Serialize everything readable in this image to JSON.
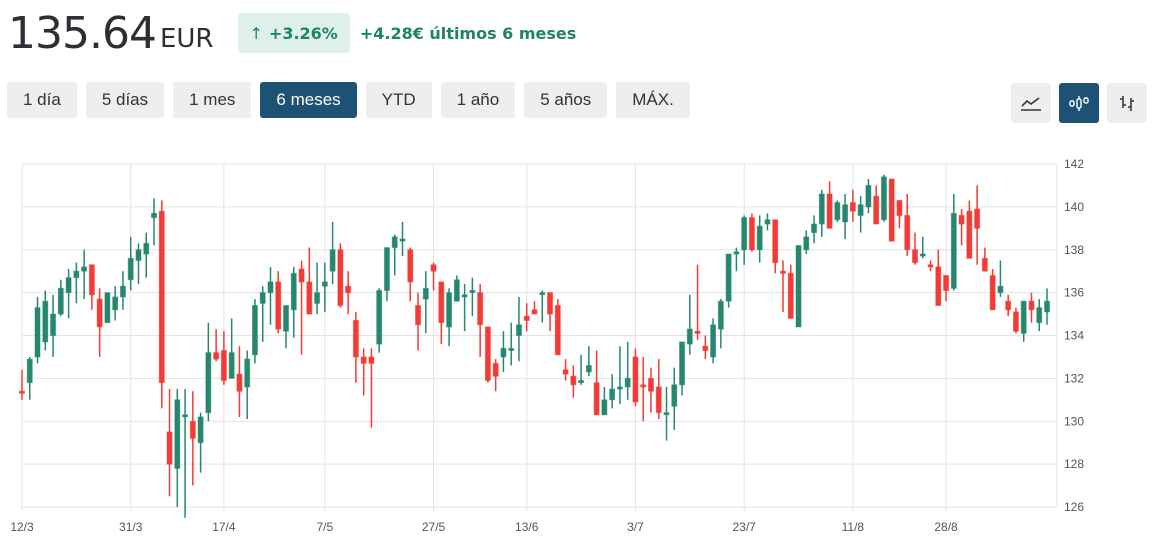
{
  "header": {
    "price": "135.64",
    "currency": "EUR",
    "change_pct": "+3.26%",
    "change_arrow": "↑",
    "change_text": "+4.28€ últimos 6 meses"
  },
  "ranges": [
    {
      "label": "1 día",
      "active": false
    },
    {
      "label": "5 días",
      "active": false
    },
    {
      "label": "1 mes",
      "active": false
    },
    {
      "label": "6 meses",
      "active": true
    },
    {
      "label": "YTD",
      "active": false
    },
    {
      "label": "1 año",
      "active": false
    },
    {
      "label": "5 años",
      "active": false
    },
    {
      "label": "MÁX.",
      "active": false
    }
  ],
  "chart_types": [
    {
      "name": "line-chart-icon",
      "active": false
    },
    {
      "name": "candlestick-chart-icon",
      "active": true
    },
    {
      "name": "ohlc-chart-icon",
      "active": false
    }
  ],
  "colors": {
    "up": "#26876e",
    "down": "#f23a36",
    "active_button": "#1d5275",
    "badge_bg": "#dff0ea",
    "positive_text": "#1f8463"
  },
  "chart_data": {
    "type": "candlestick",
    "title": "",
    "xlabel": "",
    "ylabel": "",
    "ylim": [
      126,
      142
    ],
    "yticks": [
      126,
      128,
      130,
      132,
      134,
      136,
      138,
      140,
      142
    ],
    "grid": true,
    "x_ticks": [
      {
        "label": "12/3",
        "index": 0
      },
      {
        "label": "31/3",
        "index": 14
      },
      {
        "label": "17/4",
        "index": 26
      },
      {
        "label": "7/5",
        "index": 39
      },
      {
        "label": "27/5",
        "index": 53
      },
      {
        "label": "13/6",
        "index": 65
      },
      {
        "label": "3/7",
        "index": 79
      },
      {
        "label": "23/7",
        "index": 93
      },
      {
        "label": "11/8",
        "index": 107
      },
      {
        "label": "28/8",
        "index": 119
      }
    ],
    "candles": [
      [
        131.4,
        132.4,
        131.0,
        131.3
      ],
      [
        131.8,
        133.0,
        131.0,
        132.9
      ],
      [
        133.0,
        135.8,
        132.7,
        135.3
      ],
      [
        133.7,
        136.1,
        133.3,
        135.6
      ],
      [
        134.0,
        135.9,
        133.0,
        135.0
      ],
      [
        135.0,
        136.6,
        134.9,
        136.2
      ],
      [
        136.0,
        137.1,
        134.8,
        136.7
      ],
      [
        136.7,
        137.4,
        135.5,
        137.0
      ],
      [
        137.0,
        138.0,
        135.7,
        137.2
      ],
      [
        137.3,
        137.0,
        135.2,
        135.9
      ],
      [
        135.7,
        136.2,
        133.0,
        134.4
      ],
      [
        134.6,
        136.0,
        134.6,
        136.0
      ],
      [
        135.2,
        136.3,
        134.7,
        135.8
      ],
      [
        135.8,
        137.0,
        135.2,
        136.3
      ],
      [
        136.6,
        138.6,
        136.1,
        137.6
      ],
      [
        137.5,
        138.3,
        136.4,
        138.0
      ],
      [
        137.8,
        138.8,
        136.7,
        138.3
      ],
      [
        139.5,
        140.4,
        138.2,
        139.7
      ],
      [
        139.8,
        140.3,
        130.6,
        131.8
      ],
      [
        129.5,
        131.5,
        126.5,
        128.0
      ],
      [
        127.8,
        131.5,
        126.0,
        131.0
      ],
      [
        130.3,
        131.5,
        125.5,
        130.3
      ],
      [
        130.0,
        131.4,
        127.0,
        129.2
      ],
      [
        129.0,
        130.4,
        127.6,
        130.2
      ],
      [
        130.4,
        134.6,
        130.0,
        133.2
      ],
      [
        133.2,
        134.3,
        132.8,
        132.9
      ],
      [
        133.3,
        134.2,
        131.7,
        131.9
      ],
      [
        132.0,
        134.8,
        132.0,
        133.2
      ],
      [
        132.2,
        133.5,
        130.2,
        131.4
      ],
      [
        131.6,
        133.3,
        130.1,
        132.9
      ],
      [
        133.1,
        135.7,
        132.7,
        135.4
      ],
      [
        135.5,
        136.3,
        133.7,
        136.0
      ],
      [
        136.0,
        137.2,
        134.5,
        136.5
      ],
      [
        136.5,
        137.0,
        134.1,
        134.3
      ],
      [
        134.2,
        135.4,
        133.4,
        135.4
      ],
      [
        135.2,
        137.2,
        133.9,
        136.9
      ],
      [
        137.1,
        137.5,
        133.1,
        136.5
      ],
      [
        136.5,
        138.1,
        135.0,
        135.0
      ],
      [
        135.5,
        137.4,
        135.0,
        136.0
      ],
      [
        136.3,
        137.4,
        135.1,
        136.5
      ],
      [
        137.0,
        139.3,
        136.4,
        138.0
      ],
      [
        138.0,
        138.3,
        135.3,
        135.4
      ],
      [
        136.3,
        137.0,
        135.0,
        136.0
      ],
      [
        134.7,
        135.1,
        131.8,
        133.0
      ],
      [
        133.0,
        133.4,
        131.2,
        132.7
      ],
      [
        133.0,
        133.4,
        129.7,
        132.7
      ],
      [
        133.6,
        136.2,
        133.2,
        136.1
      ],
      [
        136.1,
        138.0,
        135.6,
        138.1
      ],
      [
        138.1,
        138.7,
        136.8,
        138.6
      ],
      [
        138.5,
        139.3,
        137.7,
        138.5
      ],
      [
        138.0,
        138.1,
        135.6,
        136.5
      ],
      [
        135.4,
        136.0,
        133.3,
        134.5
      ],
      [
        135.7,
        137.0,
        134.1,
        136.2
      ],
      [
        137.3,
        137.4,
        136.1,
        137.0
      ],
      [
        136.5,
        136.5,
        133.6,
        134.6
      ],
      [
        134.4,
        136.2,
        133.5,
        136.0
      ],
      [
        135.6,
        136.8,
        135.6,
        136.6
      ],
      [
        135.8,
        136.4,
        134.2,
        135.9
      ],
      [
        136.1,
        136.7,
        134.9,
        136.1
      ],
      [
        136.0,
        136.4,
        133.0,
        134.5
      ],
      [
        134.4,
        134.4,
        131.8,
        131.9
      ],
      [
        132.7,
        132.9,
        131.4,
        132.1
      ],
      [
        133.0,
        134.2,
        132.3,
        133.4
      ],
      [
        133.3,
        134.6,
        132.6,
        133.4
      ],
      [
        134.0,
        135.8,
        132.8,
        134.5
      ],
      [
        134.9,
        135.5,
        134.2,
        134.7
      ],
      [
        135.2,
        135.6,
        135.0,
        135.0
      ],
      [
        136.0,
        136.1,
        134.6,
        136.0
      ],
      [
        136.0,
        136.0,
        134.2,
        135.0
      ],
      [
        135.4,
        135.7,
        133.1,
        133.1
      ],
      [
        132.4,
        132.9,
        131.9,
        132.2
      ],
      [
        132.1,
        132.6,
        131.1,
        131.7
      ],
      [
        131.8,
        133.1,
        131.7,
        131.9
      ],
      [
        132.3,
        133.5,
        132.1,
        132.6
      ],
      [
        131.8,
        133.3,
        130.3,
        130.3
      ],
      [
        130.3,
        131.6,
        130.8,
        131.0
      ],
      [
        131.0,
        132.2,
        130.6,
        131.5
      ],
      [
        131.5,
        133.5,
        130.8,
        131.6
      ],
      [
        131.6,
        133.7,
        131.0,
        132.0
      ],
      [
        133.0,
        133.4,
        130.7,
        130.9
      ],
      [
        131.7,
        133.0,
        130.0,
        131.6
      ],
      [
        132.0,
        132.5,
        130.4,
        131.4
      ],
      [
        131.6,
        132.9,
        130.1,
        130.4
      ],
      [
        130.4,
        131.6,
        129.1,
        130.4
      ],
      [
        130.7,
        132.5,
        129.6,
        131.7
      ],
      [
        131.7,
        133.6,
        131.2,
        133.7
      ],
      [
        133.6,
        135.9,
        133.1,
        134.3
      ],
      [
        134.2,
        137.3,
        133.8,
        134.1
      ],
      [
        133.5,
        134.0,
        132.9,
        133.3
      ],
      [
        133.0,
        134.8,
        132.7,
        134.5
      ],
      [
        134.3,
        135.7,
        133.4,
        135.6
      ],
      [
        135.6,
        137.5,
        135.3,
        137.8
      ],
      [
        137.8,
        138.1,
        137.0,
        137.9
      ],
      [
        138.0,
        139.6,
        137.3,
        139.5
      ],
      [
        139.5,
        139.7,
        137.9,
        138.0
      ],
      [
        138.0,
        139.6,
        137.4,
        139.1
      ],
      [
        139.2,
        139.7,
        138.9,
        139.4
      ],
      [
        139.4,
        139.4,
        136.9,
        137.4
      ],
      [
        137.0,
        137.5,
        135.1,
        136.9
      ],
      [
        136.9,
        137.3,
        136.6,
        134.8
      ],
      [
        134.4,
        138.0,
        134.6,
        138.2
      ],
      [
        138.0,
        138.9,
        137.8,
        138.6
      ],
      [
        138.8,
        139.6,
        138.3,
        139.2
      ],
      [
        139.2,
        140.8,
        138.6,
        140.6
      ],
      [
        140.6,
        141.2,
        139.0,
        139.0
      ],
      [
        139.4,
        140.3,
        139.3,
        140.2
      ],
      [
        139.3,
        140.6,
        138.5,
        140.1
      ],
      [
        140.2,
        140.8,
        139.3,
        139.8
      ],
      [
        139.6,
        140.5,
        138.8,
        140.1
      ],
      [
        140.0,
        141.3,
        139.7,
        141.0
      ],
      [
        140.5,
        141.0,
        139.2,
        139.2
      ],
      [
        139.4,
        141.5,
        139.3,
        141.4
      ],
      [
        141.3,
        140.8,
        138.7,
        138.4
      ],
      [
        140.3,
        140.0,
        139.0,
        139.6
      ],
      [
        139.6,
        140.6,
        137.7,
        138.0
      ],
      [
        138.0,
        138.8,
        137.3,
        137.4
      ],
      [
        137.8,
        138.6,
        137.6,
        137.8
      ],
      [
        137.3,
        137.5,
        137.0,
        137.2
      ],
      [
        137.2,
        138.0,
        135.4,
        135.4
      ],
      [
        136.8,
        136.8,
        135.6,
        136.1
      ],
      [
        136.2,
        140.6,
        136.1,
        139.7
      ],
      [
        139.6,
        139.9,
        138.2,
        139.2
      ],
      [
        139.8,
        140.3,
        137.6,
        137.6
      ],
      [
        139.9,
        141.0,
        137.3,
        139.0
      ],
      [
        137.6,
        138.1,
        137.1,
        137.0
      ],
      [
        136.8,
        137.1,
        135.5,
        135.2
      ],
      [
        136.0,
        137.5,
        135.8,
        136.3
      ],
      [
        135.6,
        135.9,
        134.9,
        135.2
      ],
      [
        135.1,
        135.3,
        134.1,
        134.2
      ],
      [
        134.1,
        134.9,
        133.7,
        135.6
      ],
      [
        135.6,
        136.0,
        134.6,
        135.2
      ],
      [
        134.6,
        135.7,
        134.2,
        135.3
      ],
      [
        135.1,
        136.2,
        134.5,
        135.6
      ]
    ]
  }
}
